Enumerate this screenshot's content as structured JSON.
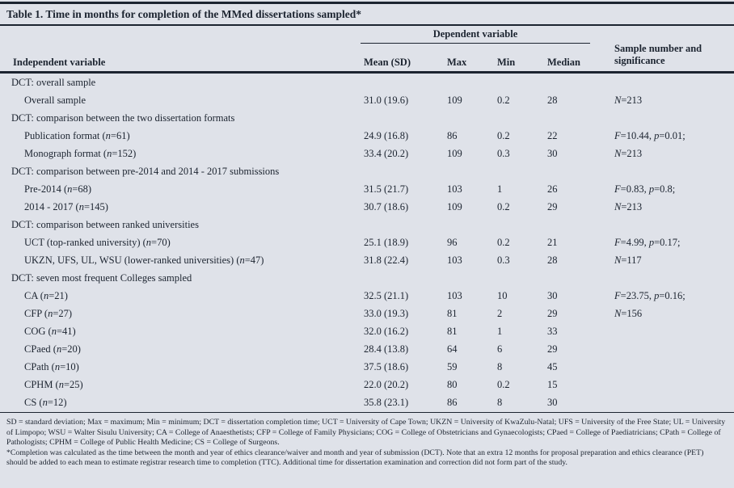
{
  "colors": {
    "background": "#dfe2e9",
    "ink": "#1c2430"
  },
  "title": "Table 1. Time in months for completion of the MMed dissertations sampled*",
  "header": {
    "dependent_group": "Dependent variable",
    "independent": "Independent variable",
    "mean": "Mean (SD)",
    "max": "Max",
    "min": "Min",
    "median": "Median",
    "sample_line1": "Sample number and",
    "sample_line2": "significance"
  },
  "rows": [
    {
      "type": "section",
      "label": "DCT: overall sample"
    },
    {
      "type": "data",
      "label": "Overall sample",
      "mean": "31.0 (19.6)",
      "max": "109",
      "min": "0.2",
      "median": "28",
      "sample": "N=213"
    },
    {
      "type": "section",
      "label": "DCT: comparison between the two dissertation formats"
    },
    {
      "type": "data",
      "label": "Publication format (n=61)",
      "mean": "24.9 (16.8)",
      "max": "86",
      "min": "0.2",
      "median": "22",
      "sample": "F=10.44, p=0.01;"
    },
    {
      "type": "data",
      "label": "Monograph format (n=152)",
      "mean": "33.4 (20.2)",
      "max": "109",
      "min": "0.3",
      "median": "30",
      "sample": "N=213"
    },
    {
      "type": "section",
      "label": "DCT: comparison between pre-2014 and 2014 - 2017 submissions"
    },
    {
      "type": "data",
      "label": "Pre-2014 (n=68)",
      "mean": "31.5 (21.7)",
      "max": "103",
      "min": "1",
      "median": "26",
      "sample": "F=0.83, p=0.8;"
    },
    {
      "type": "data",
      "label": "2014 - 2017 (n=145)",
      "mean": "30.7 (18.6)",
      "max": "109",
      "min": "0.2",
      "median": "29",
      "sample": "N=213"
    },
    {
      "type": "section",
      "label": "DCT: comparison between ranked universities"
    },
    {
      "type": "data",
      "label": "UCT (top-ranked university) (n=70)",
      "mean": "25.1 (18.9)",
      "max": "96",
      "min": "0.2",
      "median": "21",
      "sample": "F=4.99, p=0.17;"
    },
    {
      "type": "data",
      "label": "UKZN, UFS, UL, WSU (lower-ranked universities) (n=47)",
      "mean": "31.8 (22.4)",
      "max": "103",
      "min": "0.3",
      "median": "28",
      "sample": "N=117"
    },
    {
      "type": "section",
      "label": "DCT: seven most frequent Colleges sampled"
    },
    {
      "type": "data",
      "label": "CA (n=21)",
      "mean": "32.5 (21.1)",
      "max": "103",
      "min": "10",
      "median": "30",
      "sample": "F=23.75, p=0.16;"
    },
    {
      "type": "data",
      "label": "CFP (n=27)",
      "mean": "33.0 (19.3)",
      "max": "81",
      "min": "2",
      "median": "29",
      "sample": "N=156"
    },
    {
      "type": "data",
      "label": "COG (n=41)",
      "mean": "32.0 (16.2)",
      "max": "81",
      "min": "1",
      "median": "33",
      "sample": ""
    },
    {
      "type": "data",
      "label": "CPaed (n=20)",
      "mean": "28.4 (13.8)",
      "max": "64",
      "min": "6",
      "median": "29",
      "sample": ""
    },
    {
      "type": "data",
      "label": "CPath (n=10)",
      "mean": "37.5 (18.6)",
      "max": "59",
      "min": "8",
      "median": "45",
      "sample": ""
    },
    {
      "type": "data",
      "label": "CPHM (n=25)",
      "mean": "22.0 (20.2)",
      "max": "80",
      "min": "0.2",
      "median": "15",
      "sample": ""
    },
    {
      "type": "data",
      "label": "CS (n=12)",
      "mean": "35.8 (23.1)",
      "max": "86",
      "min": "8",
      "median": "30",
      "sample": ""
    }
  ],
  "footnotes": {
    "abbreviations": "SD = standard deviation; Max = maximum; Min = minimum; DCT = dissertation completion time; UCT = University of Cape Town; UKZN = University of KwaZulu-Natal; UFS = University of the Free State; UL = University of Limpopo; WSU = Walter Sisulu University; CA = College of Anaesthetists; CFP = College of Family Physicians; COG = College of Obstetricians and Gynaecologists; CPaed = College of Paediatricians; CPath = College of Pathologists; CPHM = College of Public Health Medicine; CS = College of Surgeons.",
    "note": "*Completion was calculated as the time between the month and year of ethics clearance/waiver and month and year of submission (DCT). Note that an extra 12 months for proposal preparation and ethics clearance (PET) should be added to each mean to estimate registrar research time to completion (TTC). Additional time for dissertation examination and correction did not form part of the study."
  }
}
